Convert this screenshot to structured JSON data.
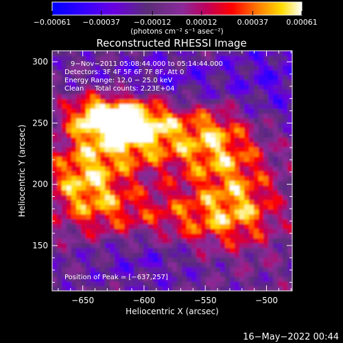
{
  "chart_data": {
    "type": "heatmap",
    "title": "Reconstructed RHESSI Image",
    "xlabel": "Heliocentric X (arcsec)",
    "ylabel": "Heliocentric Y (arcsec)",
    "xlim": [
      -675,
      -479
    ],
    "ylim": [
      113,
      309
    ],
    "x_ticks": [
      -650,
      -600,
      -550,
      -500
    ],
    "x_tick_labels": [
      "−650",
      "−600",
      "−550",
      "−500"
    ],
    "y_ticks": [
      150,
      200,
      250,
      300
    ],
    "y_tick_labels": [
      "150",
      "200",
      "250",
      "300"
    ],
    "colorbar": {
      "range": [
        -0.00061,
        0.00061
      ],
      "ticks": [
        -0.00061,
        -0.00037,
        -0.00012,
        0.00012,
        0.00037,
        0.00061
      ],
      "tick_labels": [
        "−0.00061",
        "−0.00037",
        "−0.00012",
        "0.00012",
        "0.00037",
        "0.00061"
      ],
      "unit_label": "(photons cm⁻² s⁻¹ asec⁻²)",
      "colors": [
        "#0000ff",
        "#4400ff",
        "#8800ff",
        "#5a2d78",
        "#7a3fa0",
        "#b0006a",
        "#ff0000",
        "#ff7700",
        "#ffdd00",
        "#ffffff"
      ]
    },
    "annotations": [
      "9−Nov−2011 05:08:44.000 to 05:14:44.000",
      "Detectors: 3F 4F 5F 6F 7F 8F, Att 0",
      "Energy Range: 12.0 − 25.0 keV",
      "Clean     Total counts: 2.23E+04"
    ],
    "peak_label": "Position of Peak = [−637,257]",
    "peak": [
      -637,
      257
    ],
    "grid": false,
    "legend": "colorbar-top"
  },
  "footer": {
    "timestamp": "16−May−2022 00:44"
  }
}
